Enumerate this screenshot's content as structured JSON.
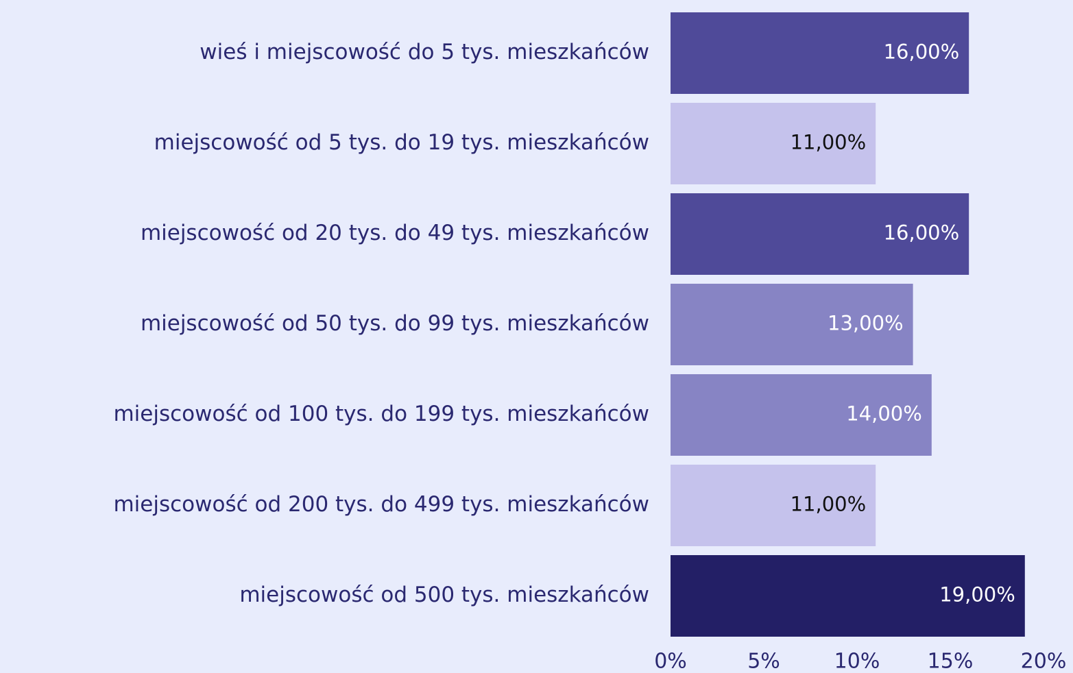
{
  "chart_data": {
    "type": "bar",
    "orientation": "horizontal",
    "categories": [
      "wieś i miejscowość do 5 tys. mieszkańców",
      "miejscowość od 5 tys. do 19 tys. mieszkańców",
      "miejscowość od 20 tys. do 49 tys. mieszkańców",
      "miejscowość od 50 tys. do 99 tys. mieszkańców",
      "miejscowość od 100 tys. do 199 tys. mieszkańców",
      "miejscowość od 200 tys. do 499 tys. mieszkańców",
      "miejscowość od 500 tys. mieszkańców"
    ],
    "values": [
      16,
      11,
      16,
      13,
      14,
      11,
      19
    ],
    "value_labels": [
      "16,00%",
      "11,00%",
      "16,00%",
      "13,00%",
      "14,00%",
      "11,00%",
      "19,00%"
    ],
    "colors": [
      "#4f4a99",
      "#c5c2ec",
      "#4f4a99",
      "#8784c4",
      "#8784c4",
      "#c5c2ec",
      "#231f66"
    ],
    "label_colors": [
      "#ffffff",
      "#111111",
      "#ffffff",
      "#ffffff",
      "#ffffff",
      "#111111",
      "#ffffff"
    ],
    "xlim": [
      0,
      20
    ],
    "xticks": [
      {
        "value": 0,
        "label": "0%"
      },
      {
        "value": 5,
        "label": "5%"
      },
      {
        "value": 10,
        "label": "10%"
      },
      {
        "value": 15,
        "label": "15%"
      },
      {
        "value": 20,
        "label": "20%"
      }
    ],
    "grid": false
  }
}
